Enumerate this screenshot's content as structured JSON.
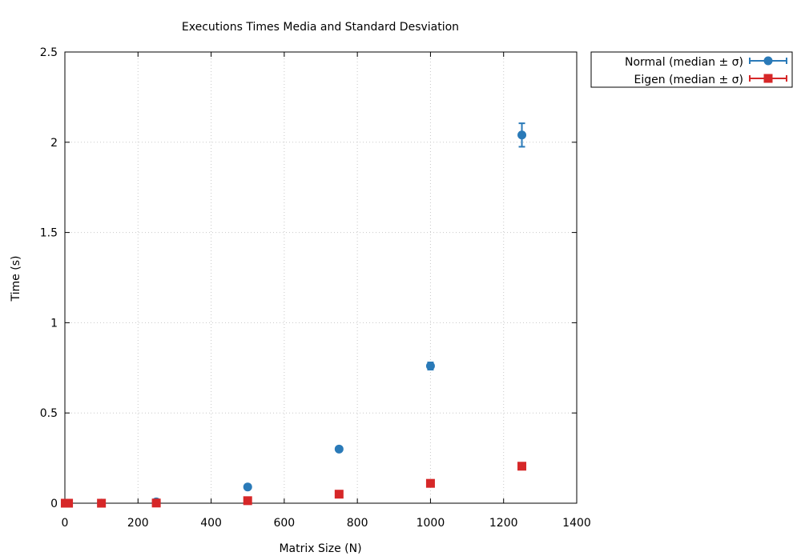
{
  "chart_data": {
    "type": "scatter",
    "title": "Executions Times Media and Standard Desviation",
    "xlabel": "Matrix Size (N)",
    "ylabel": "Time (s)",
    "xlim": [
      0,
      1400
    ],
    "ylim": [
      0,
      2.5
    ],
    "xticks": [
      "0",
      "200",
      "400",
      "600",
      "800",
      "1000",
      "1200",
      "1400"
    ],
    "xtick_values": [
      0,
      200,
      400,
      600,
      800,
      1000,
      1200,
      1400
    ],
    "yticks": [
      "0",
      "0.5",
      "1",
      "1.5",
      "2",
      "2.5"
    ],
    "ytick_values": [
      0,
      0.5,
      1,
      1.5,
      2,
      2.5
    ],
    "grid": true,
    "legend_position": "outside-top-right",
    "series": [
      {
        "name": "Normal (median ± σ)",
        "color": "#2a7ab8",
        "marker": "circle",
        "x": [
          1,
          10,
          100,
          250,
          500,
          750,
          1000,
          1250
        ],
        "y": [
          0.0,
          0.0,
          0.0005,
          0.007,
          0.09,
          0.3,
          0.76,
          2.04
        ],
        "err": [
          0.0,
          0.0,
          0.0,
          0.001,
          0.003,
          0.005,
          0.02,
          0.065
        ]
      },
      {
        "name": "Eigen (median ± σ)",
        "color": "#d62728",
        "marker": "square",
        "x": [
          1,
          10,
          100,
          250,
          500,
          750,
          1000,
          1250
        ],
        "y": [
          0.0,
          0.0,
          0.0,
          0.001,
          0.014,
          0.05,
          0.11,
          0.205
        ],
        "err": [
          0.0,
          0.0,
          0.0,
          0.0,
          0.001,
          0.002,
          0.004,
          0.005
        ]
      }
    ]
  }
}
